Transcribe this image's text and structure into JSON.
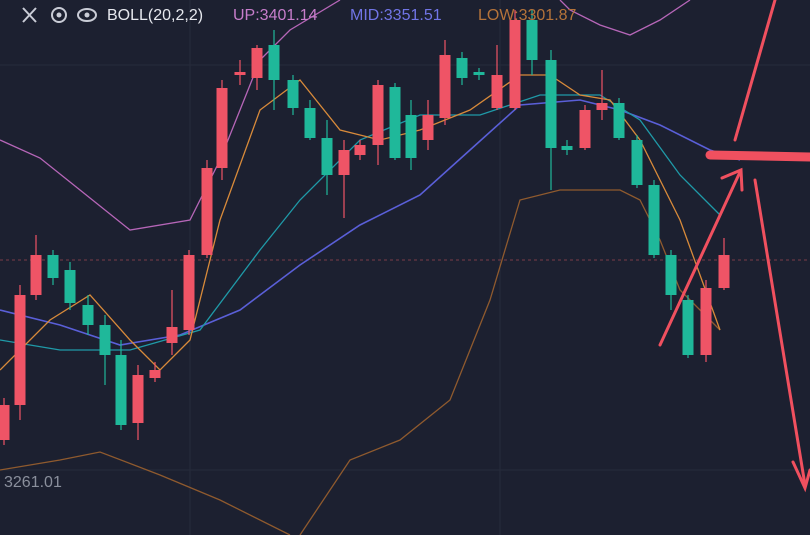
{
  "toolbar": {
    "indicator": "BOLL(20,2,2)",
    "up": "UP:3401.14",
    "mid": "MID:3351.51",
    "low": "LOW:3301.87"
  },
  "price_label": "3261.01"
}
